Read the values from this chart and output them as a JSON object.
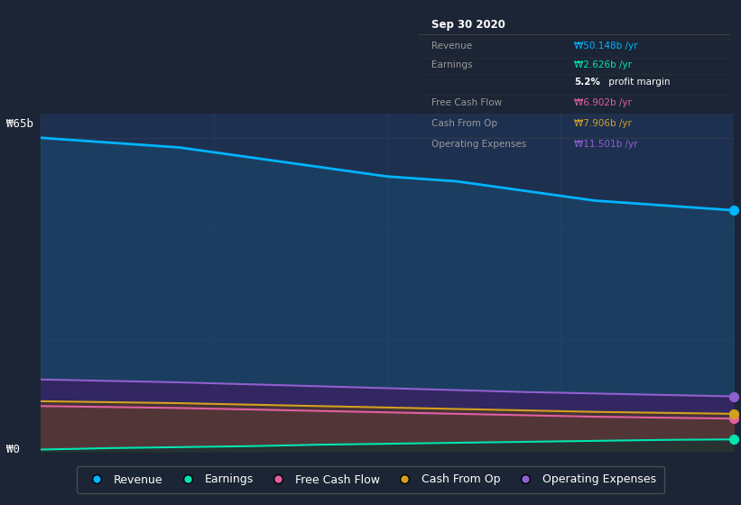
{
  "background_color": "#1c2535",
  "plot_area_bg": "#1e3050",
  "y_label_top": "₩65b",
  "y_label_bottom": "₩0",
  "x_points": [
    0,
    1,
    2,
    3,
    4,
    5,
    6,
    7,
    8,
    9,
    10
  ],
  "revenue": [
    65,
    64,
    63,
    61,
    59,
    57,
    56,
    54,
    52,
    51,
    50
  ],
  "earnings": [
    0.5,
    0.8,
    1.0,
    1.2,
    1.5,
    1.7,
    1.9,
    2.1,
    2.3,
    2.5,
    2.6
  ],
  "free_cash_flow": [
    9.5,
    9.3,
    9.1,
    8.8,
    8.5,
    8.2,
    7.9,
    7.6,
    7.3,
    7.1,
    6.9
  ],
  "cash_from_op": [
    10.5,
    10.3,
    10.1,
    9.8,
    9.5,
    9.2,
    8.9,
    8.6,
    8.3,
    8.1,
    7.9
  ],
  "operating_expenses": [
    15,
    14.7,
    14.4,
    14.0,
    13.6,
    13.2,
    12.8,
    12.4,
    12.1,
    11.8,
    11.5
  ],
  "revenue_color": "#00b4ff",
  "revenue_fill": "#1a4a6e",
  "earnings_color": "#00e5b0",
  "earnings_fill": "#003030",
  "free_cash_flow_color": "#e060a0",
  "free_cash_flow_fill": "#5a3060",
  "cash_from_op_color": "#d4a020",
  "cash_from_op_fill": "#5a4010",
  "operating_expenses_color": "#9060d0",
  "operating_expenses_fill": "#3a2060",
  "info_panel": {
    "title": "Sep 30 2020",
    "rows": [
      {
        "label": "Revenue",
        "value": "₩50.148b /yr",
        "color": "#00b4ff",
        "has_sub": false
      },
      {
        "label": "Earnings",
        "value": "₩2.626b /yr",
        "color": "#00e5b0",
        "has_sub": true
      },
      {
        "label": "",
        "value": "profit margin",
        "color": "#ffffff",
        "bold_val": "5.2%",
        "has_sub": false
      },
      {
        "label": "Free Cash Flow",
        "value": "₩6.902b /yr",
        "color": "#e060a0",
        "has_sub": false
      },
      {
        "label": "Cash From Op",
        "value": "₩7.906b /yr",
        "color": "#d4a020",
        "has_sub": false
      },
      {
        "label": "Operating Expenses",
        "value": "₩11.501b /yr",
        "color": "#9060d0",
        "has_sub": false
      }
    ]
  },
  "legend": [
    {
      "label": "Revenue",
      "color": "#00b4ff"
    },
    {
      "label": "Earnings",
      "color": "#00e5b0"
    },
    {
      "label": "Free Cash Flow",
      "color": "#e060a0"
    },
    {
      "label": "Cash From Op",
      "color": "#d4a020"
    },
    {
      "label": "Operating Expenses",
      "color": "#9060d0"
    }
  ],
  "gridline_color": "#2a4060",
  "axis_label_color": "#ffffff",
  "label_fontsize": 9.0,
  "line_width": 2.0,
  "dot_size": 50
}
